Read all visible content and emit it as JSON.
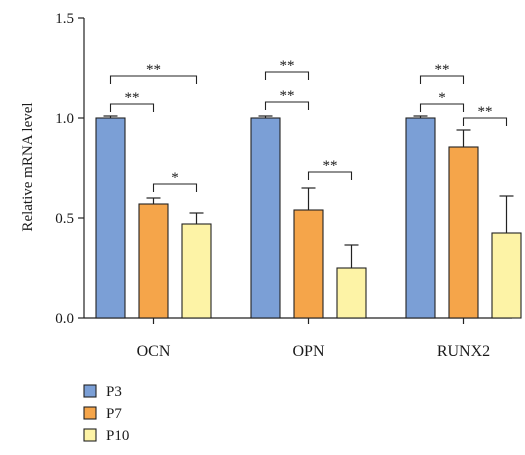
{
  "chart_data": {
    "type": "bar",
    "title": "",
    "xlabel": "",
    "ylabel": "Relative mRNA level",
    "ylim": [
      0,
      1.5
    ],
    "yticks": [
      0.0,
      0.5,
      1.0,
      1.5
    ],
    "ytick_labels": [
      "0.0",
      "0.5",
      "1.0",
      "1.5"
    ],
    "grid": false,
    "legend_position": "bottom-left",
    "categories": [
      "OCN",
      "OPN",
      "RUNX2"
    ],
    "series": [
      {
        "name": "P3",
        "color": "#7b9fd6",
        "values": [
          1.0,
          1.0,
          1.0
        ],
        "errors": [
          0.01,
          0.01,
          0.01
        ]
      },
      {
        "name": "P7",
        "color": "#f5a54a",
        "values": [
          0.57,
          0.54,
          0.855
        ],
        "errors": [
          0.03,
          0.11,
          0.085
        ]
      },
      {
        "name": "P10",
        "color": "#fdf3a6",
        "values": [
          0.47,
          0.25,
          0.425
        ],
        "errors": [
          0.055,
          0.115,
          0.185
        ]
      }
    ],
    "significance": [
      {
        "category": 0,
        "from": 0,
        "to": 2,
        "label": "**",
        "y": 1.21
      },
      {
        "category": 0,
        "from": 0,
        "to": 1,
        "label": "**",
        "y": 1.07
      },
      {
        "category": 0,
        "from": 1,
        "to": 2,
        "label": "*",
        "y": 0.67
      },
      {
        "category": 1,
        "from": 0,
        "to": 1,
        "label": "**",
        "y": 1.23
      },
      {
        "category": 1,
        "from": 0,
        "to": 1,
        "label": "**",
        "y": 1.08
      },
      {
        "category": 1,
        "from": 1,
        "to": 2,
        "label": "**",
        "y": 0.73
      },
      {
        "category": 2,
        "from": 0,
        "to": 1,
        "label": "**",
        "y": 1.21
      },
      {
        "category": 2,
        "from": 0,
        "to": 1,
        "label": "*",
        "y": 1.07
      },
      {
        "category": 2,
        "from": 1,
        "to": 2,
        "label": "**",
        "y": 1.0
      }
    ]
  }
}
